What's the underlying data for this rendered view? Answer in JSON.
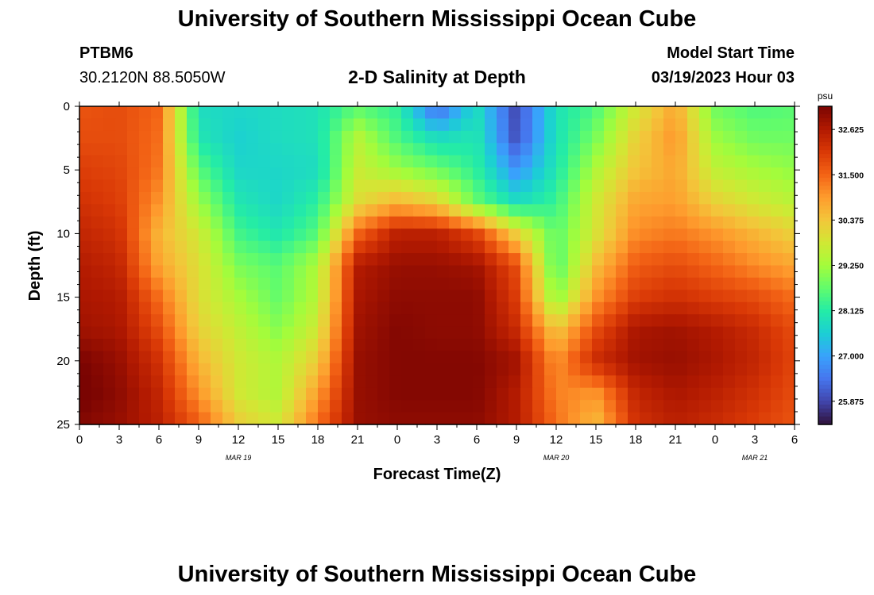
{
  "header": {
    "title": "University of Southern Mississippi Ocean Cube",
    "station": "PTBM6",
    "coords": "30.2120N  88.5050W",
    "subtitle": "2-D Salinity at Depth",
    "model_start_label": "Model Start Time",
    "model_start_value": "03/19/2023 Hour 03"
  },
  "footer": {
    "title": "University of Southern Mississippi Ocean Cube"
  },
  "chart_data": {
    "type": "heatmap",
    "title": "2-D Salinity at Depth",
    "xlabel": "Forecast Time(Z)",
    "ylabel": "Depth (ft)",
    "x_ticks": [
      "0",
      "3",
      "6",
      "9",
      "12",
      "15",
      "18",
      "21",
      "0",
      "3",
      "6",
      "9",
      "12",
      "15",
      "18",
      "21",
      "0",
      "3",
      "6"
    ],
    "x_range_hours": [
      0,
      54
    ],
    "date_labels": [
      {
        "label": "MAR 19",
        "hour": 12
      },
      {
        "label": "MAR 20",
        "hour": 36
      },
      {
        "label": "MAR 21",
        "hour": 51
      }
    ],
    "y_ticks": [
      0,
      5,
      10,
      15,
      20,
      25
    ],
    "ylim": [
      0,
      25
    ],
    "y_inverted": true,
    "colorbar": {
      "unit": "psu",
      "ticks": [
        "32.625",
        "31.500",
        "30.375",
        "29.250",
        "28.125",
        "27.000",
        "25.875"
      ],
      "range": [
        25.3,
        33.2
      ],
      "colormap": [
        "#30123b",
        "#4145ab",
        "#4675ed",
        "#39a2fc",
        "#1bcfd4",
        "#24eca6",
        "#61fc6c",
        "#a4fc3b",
        "#d1e834",
        "#f3c63a",
        "#fe9b2d",
        "#f36315",
        "#d93806",
        "#b11901",
        "#7a0402"
      ]
    },
    "field_description": "salinity in psu sampled over time (hours) and depth (ft)",
    "field": {
      "columns_hours": [
        0,
        3,
        6,
        9,
        12,
        15,
        18,
        21,
        24,
        27,
        30,
        33,
        36,
        39,
        42,
        45,
        48,
        51,
        54
      ],
      "rows_depth_ft": [
        0,
        2.5,
        5,
        7.5,
        10,
        12.5,
        15,
        17.5,
        20,
        22.5,
        25
      ],
      "values": [
        [
          31.7,
          31.8,
          31.5,
          27.8,
          27.7,
          27.8,
          27.9,
          28.6,
          28.2,
          26.2,
          27.8,
          25.9,
          27.9,
          28.5,
          29.8,
          30.8,
          28.8,
          28.5,
          28.6
        ],
        [
          31.8,
          31.8,
          31.4,
          28.0,
          27.6,
          27.8,
          27.9,
          29.5,
          28.5,
          27.8,
          28.0,
          26.0,
          27.9,
          28.9,
          30.2,
          31.0,
          29.2,
          28.8,
          28.8
        ],
        [
          32.0,
          31.9,
          31.3,
          28.6,
          27.7,
          27.7,
          27.8,
          29.7,
          29.2,
          28.8,
          28.2,
          26.8,
          28.0,
          29.4,
          30.4,
          30.8,
          29.6,
          29.3,
          29.1
        ],
        [
          32.2,
          32.0,
          31.0,
          29.2,
          28.0,
          27.7,
          28.2,
          30.0,
          30.6,
          30.2,
          28.7,
          27.8,
          28.3,
          29.8,
          30.8,
          30.9,
          30.2,
          29.8,
          29.5
        ],
        [
          32.4,
          32.2,
          30.6,
          29.8,
          28.4,
          28.0,
          28.6,
          31.5,
          32.5,
          32.5,
          31.9,
          30.2,
          28.6,
          29.9,
          31.1,
          31.3,
          31.0,
          30.6,
          30.2
        ],
        [
          32.6,
          32.4,
          30.8,
          30.0,
          28.9,
          28.6,
          29.4,
          32.6,
          32.9,
          32.9,
          32.8,
          31.8,
          28.5,
          30.5,
          31.6,
          31.8,
          31.5,
          31.1,
          30.8
        ],
        [
          32.7,
          32.6,
          31.4,
          30.0,
          29.3,
          28.7,
          29.5,
          32.7,
          33.0,
          33.0,
          33.0,
          32.0,
          29.0,
          31.0,
          32.0,
          32.2,
          32.0,
          31.8,
          31.4
        ],
        [
          32.8,
          32.7,
          31.8,
          30.2,
          29.6,
          29.0,
          29.8,
          32.8,
          33.1,
          33.0,
          33.0,
          32.3,
          30.3,
          31.8,
          32.7,
          32.8,
          32.6,
          32.3,
          31.8
        ],
        [
          33.2,
          32.9,
          32.2,
          30.6,
          29.8,
          29.4,
          30.3,
          32.9,
          33.1,
          33.1,
          33.1,
          32.8,
          31.0,
          32.3,
          32.8,
          32.9,
          32.7,
          32.4,
          31.9
        ],
        [
          33.3,
          33.0,
          32.4,
          31.0,
          29.8,
          29.4,
          30.9,
          32.9,
          33.1,
          33.1,
          33.1,
          32.6,
          31.2,
          31.0,
          32.4,
          32.7,
          32.5,
          32.2,
          31.8
        ],
        [
          33.1,
          32.9,
          32.5,
          31.6,
          30.3,
          29.8,
          31.4,
          32.9,
          33.0,
          33.0,
          33.0,
          32.6,
          31.4,
          30.5,
          32.2,
          32.5,
          32.3,
          32.0,
          31.7
        ]
      ]
    }
  }
}
